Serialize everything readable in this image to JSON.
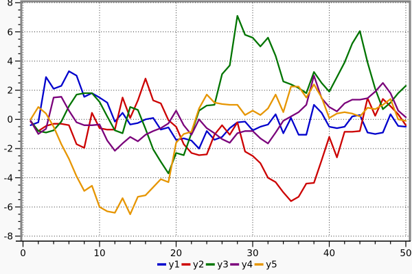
{
  "chart_data": {
    "type": "line",
    "x_start": 1,
    "x": [
      1,
      2,
      3,
      4,
      5,
      6,
      7,
      8,
      9,
      10,
      11,
      12,
      13,
      14,
      15,
      16,
      17,
      18,
      19,
      20,
      21,
      22,
      23,
      24,
      25,
      26,
      27,
      28,
      29,
      30,
      31,
      32,
      33,
      34,
      35,
      36,
      37,
      38,
      39,
      40,
      41,
      42,
      43,
      44,
      45,
      46,
      47,
      48,
      49,
      50
    ],
    "series": [
      {
        "name": "y1",
        "color": "#0000cc",
        "values": [
          -0.4,
          -0.2,
          2.9,
          2.1,
          2.3,
          3.3,
          3.0,
          1.55,
          1.8,
          1.5,
          1.15,
          -0.15,
          0.45,
          -0.35,
          -0.25,
          0.0,
          0.1,
          -0.7,
          -0.55,
          -1.4,
          -1.3,
          -1.45,
          -2.0,
          -0.8,
          -1.4,
          -1.2,
          -0.6,
          -0.2,
          -0.15,
          -0.75,
          -0.5,
          -0.35,
          0.35,
          -0.95,
          0.1,
          -1.05,
          -1.05,
          1.0,
          0.45,
          -0.5,
          -0.6,
          -0.5,
          0.2,
          0.3,
          -0.9,
          -1.0,
          -0.9,
          0.35,
          -0.45,
          -0.5
        ]
      },
      {
        "name": "y2",
        "color": "#cc0000",
        "values": [
          -0.15,
          -0.8,
          -0.45,
          -0.3,
          -0.3,
          -0.4,
          -1.7,
          -1.95,
          0.45,
          -0.6,
          -0.7,
          -0.7,
          1.5,
          0.1,
          1.3,
          2.8,
          1.3,
          1.1,
          -0.05,
          -0.5,
          -1.7,
          -2.3,
          -2.45,
          -2.4,
          -1.05,
          -0.4,
          -1.05,
          -0.2,
          -2.2,
          -2.5,
          -3.0,
          -4.0,
          -4.3,
          -5.0,
          -5.6,
          -5.3,
          -4.4,
          -4.35,
          -2.8,
          -1.2,
          -2.6,
          -0.85,
          -0.85,
          -0.8,
          1.45,
          0.25,
          1.4,
          0.9,
          0.35,
          -0.4
        ]
      },
      {
        "name": "y3",
        "color": "#007400",
        "values": [
          -0.1,
          -0.8,
          -0.9,
          -0.75,
          -0.15,
          0.9,
          1.7,
          1.8,
          1.8,
          1.2,
          0.2,
          -0.75,
          -0.95,
          0.85,
          0.65,
          -0.65,
          -2.05,
          -2.9,
          -3.7,
          -2.3,
          -2.45,
          -0.95,
          0.6,
          0.95,
          1.0,
          3.1,
          3.7,
          7.1,
          5.8,
          5.6,
          5.0,
          5.6,
          4.35,
          2.6,
          2.4,
          2.15,
          1.8,
          3.25,
          2.5,
          1.9,
          2.9,
          3.9,
          5.2,
          6.05,
          3.9,
          2.1,
          0.7,
          1.15,
          1.8,
          2.3
        ]
      },
      {
        "name": "y4",
        "color": "#7a007a",
        "values": [
          -0.1,
          -1.0,
          -0.65,
          1.5,
          1.55,
          0.6,
          -0.2,
          -0.4,
          -0.4,
          -0.35,
          -1.45,
          -2.15,
          -1.65,
          -1.2,
          -1.5,
          -1.05,
          -0.8,
          -0.6,
          -0.27,
          0.6,
          -0.4,
          -1.05,
          0.0,
          -0.6,
          -0.95,
          -1.35,
          -1.6,
          -0.95,
          -0.8,
          -0.8,
          -1.3,
          -1.65,
          -0.9,
          -0.1,
          0.2,
          0.5,
          1.0,
          3.0,
          1.45,
          0.85,
          0.55,
          1.1,
          1.35,
          1.35,
          1.45,
          1.9,
          2.5,
          1.8,
          0.6,
          0.15
        ]
      },
      {
        "name": "y5",
        "color": "#e69500",
        "values": [
          0.0,
          0.85,
          0.4,
          -0.5,
          -1.7,
          -2.7,
          -3.9,
          -4.9,
          -4.55,
          -6.0,
          -6.3,
          -6.4,
          -5.4,
          -6.5,
          -5.3,
          -5.2,
          -4.65,
          -4.1,
          -4.3,
          -1.6,
          -1.0,
          -0.85,
          0.75,
          1.7,
          1.15,
          1.05,
          1.0,
          1.0,
          0.3,
          0.6,
          0.3,
          0.75,
          1.7,
          0.5,
          2.25,
          2.25,
          1.5,
          2.4,
          1.5,
          0.1,
          0.4,
          0.5,
          0.4,
          0.2,
          0.8,
          0.7,
          1.0,
          1.4,
          0.0,
          -0.1
        ]
      }
    ],
    "title": "",
    "xlabel": "",
    "ylabel": "",
    "x_axis": {
      "min": 0,
      "max": 50,
      "major_ticks": [
        0,
        10,
        20,
        30,
        40,
        50
      ],
      "minor_step": 2,
      "tick_labels": [
        "0",
        "10",
        "20",
        "30",
        "40",
        "50"
      ]
    },
    "y_axis": {
      "min": -8,
      "max": 8,
      "major_ticks": [
        8,
        6,
        4,
        2,
        0,
        -2,
        -4,
        -6,
        -8
      ],
      "minor_step": 0.5,
      "tick_labels": [
        "8",
        "6",
        "4",
        "2",
        "0",
        "-2",
        "-4",
        "-6",
        "-8"
      ]
    },
    "grid": "dotted major gridlines on",
    "legend": {
      "position": "bottom-center",
      "items": [
        {
          "label": "y1",
          "color": "#0000cc"
        },
        {
          "label": "y2",
          "color": "#cc0000"
        },
        {
          "label": "y3",
          "color": "#007400"
        },
        {
          "label": "y4",
          "color": "#7a007a"
        },
        {
          "label": "y5",
          "color": "#e69500"
        }
      ]
    },
    "style": {
      "page_bg": "#f9f9f9",
      "plot_bg": "#ffffff",
      "frame_color": "#848484",
      "axis_color": "#000000",
      "grid_color": "#2a2a2a",
      "label_color": "#000000",
      "line_width": 2.3
    }
  }
}
